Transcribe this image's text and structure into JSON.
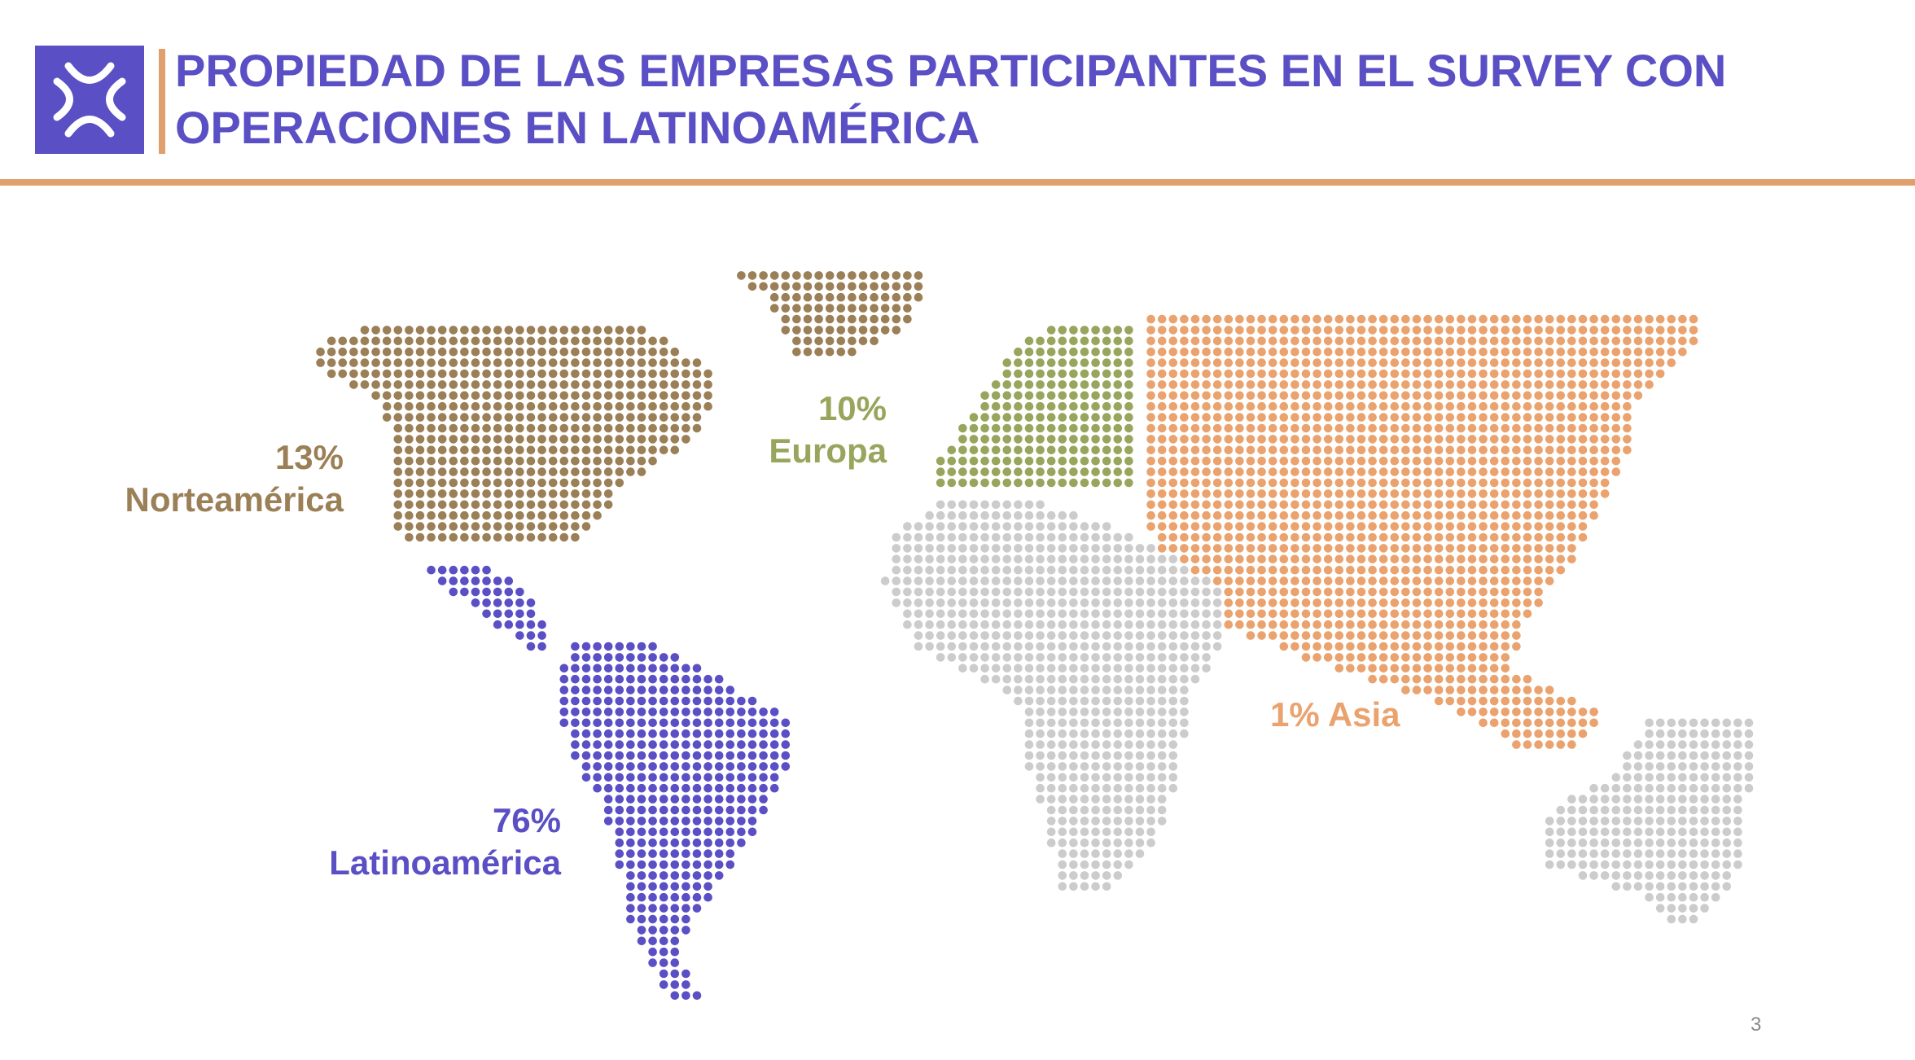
{
  "slide": {
    "title_lines": [
      "PROPIEDAD DE LAS EMPRESAS PARTICIPANTES EN EL SURVEY CON",
      "OPERACIONES EN LATINOAMÉRICA"
    ],
    "page_number": "3"
  },
  "colors": {
    "brand": "#5a4fc4",
    "accent": "#e0a06d",
    "norteamerica": "#9b7f57",
    "latinoamerica": "#5a4fc4",
    "europa": "#98a55c",
    "asia": "#eaa36f",
    "other": "#cccccc"
  },
  "icons": {
    "logo": "logo-mark-icon"
  },
  "regions": [
    {
      "key": "norteamerica",
      "percent": "13%",
      "name": "Norteamérica"
    },
    {
      "key": "europa",
      "percent": "10%",
      "name": "Europa"
    },
    {
      "key": "latinoamerica",
      "percent": "76%",
      "name": "Latinoamérica"
    },
    {
      "key": "asia",
      "percent": "1%",
      "name": "Asia",
      "label": "1% Asia"
    }
  ]
}
